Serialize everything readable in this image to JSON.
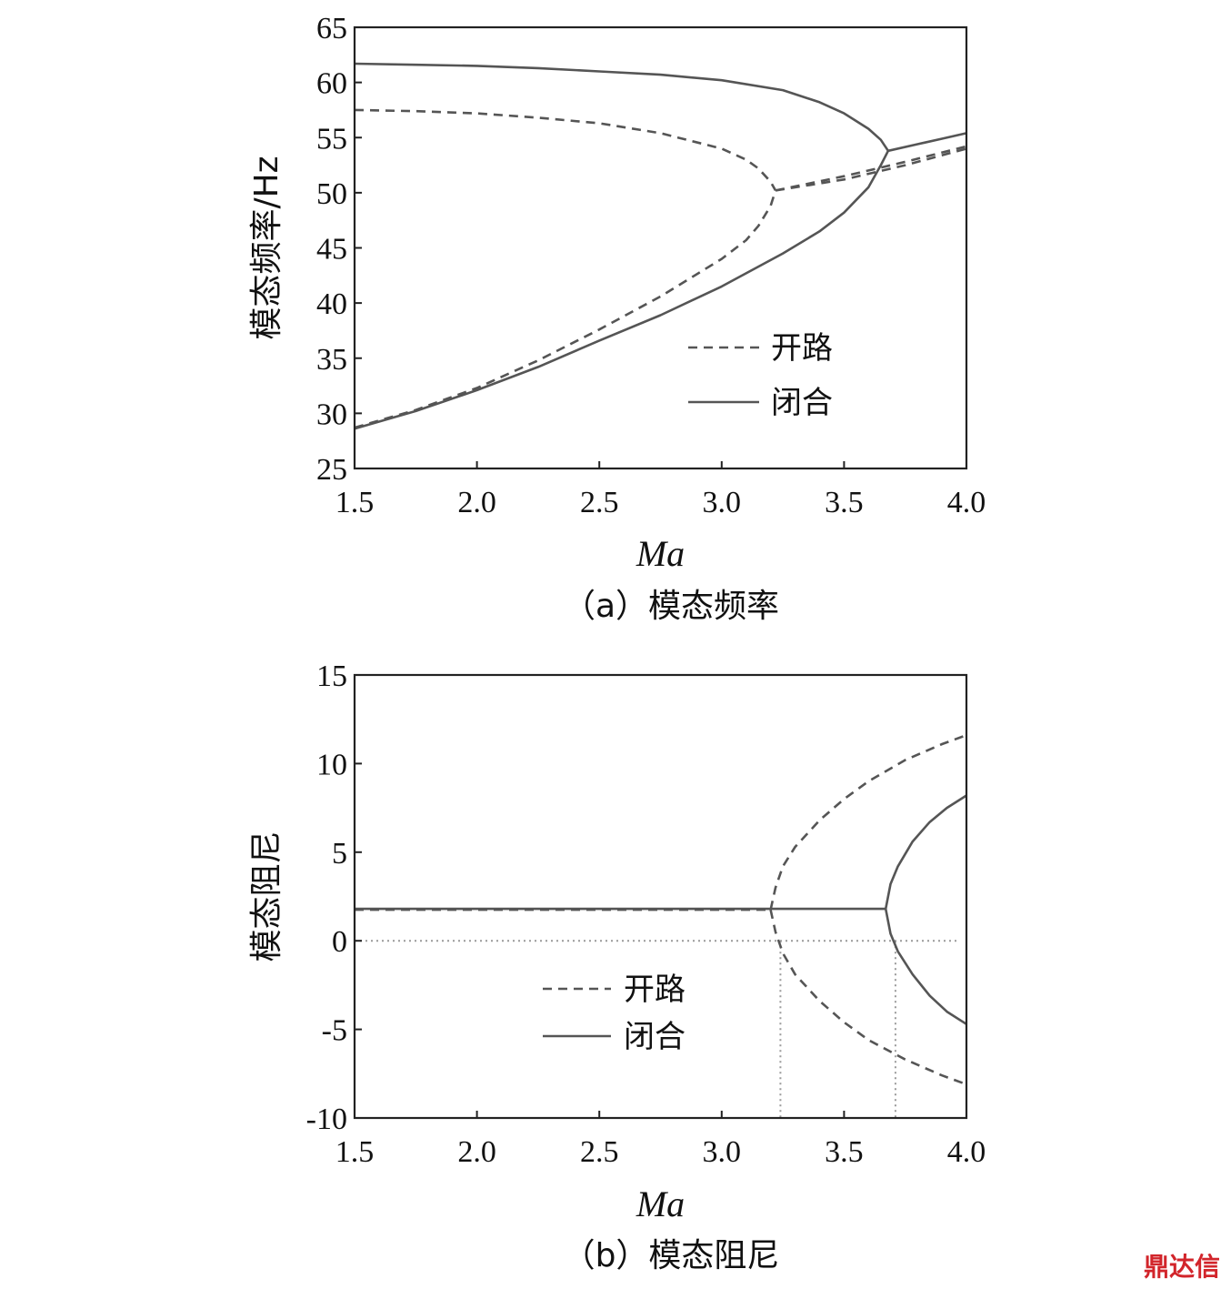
{
  "chart_data": [
    {
      "type": "line",
      "caption": "（a）模态频率",
      "xlabel": "Ma",
      "ylabel": "模态频率/Hz",
      "xlim": [
        1.5,
        4.0
      ],
      "ylim": [
        25,
        65
      ],
      "xticks": [
        "1.5",
        "2.0",
        "2.5",
        "3.0",
        "3.5",
        "4.0"
      ],
      "yticks": [
        "25",
        "30",
        "35",
        "40",
        "45",
        "50",
        "55",
        "60",
        "65"
      ],
      "legend": {
        "placement": "center-right",
        "entries": [
          "开路",
          "闭合"
        ]
      },
      "series": [
        {
          "name": "开路",
          "style": "dashed",
          "x": [
            1.5,
            1.75,
            2.0,
            2.25,
            2.5,
            2.75,
            3.0,
            3.1,
            3.15,
            3.2,
            3.22
          ],
          "y": [
            57.5,
            57.4,
            57.2,
            56.8,
            56.3,
            55.4,
            54.0,
            53.0,
            52.2,
            51.0,
            50.2
          ]
        },
        {
          "name": "开路",
          "style": "dashed",
          "x": [
            1.5,
            1.75,
            2.0,
            2.25,
            2.5,
            2.75,
            3.0,
            3.1,
            3.15,
            3.2,
            3.22
          ],
          "y": [
            28.7,
            30.3,
            32.3,
            34.8,
            37.6,
            40.6,
            44.0,
            45.7,
            47.0,
            48.8,
            50.2
          ]
        },
        {
          "name": "开路",
          "style": "dashed",
          "x": [
            3.22,
            3.5,
            3.75,
            4.0
          ],
          "y": [
            50.2,
            51.5,
            52.8,
            54.2
          ]
        },
        {
          "name": "开路",
          "style": "dashed",
          "x": [
            3.22,
            3.5,
            3.75,
            4.0
          ],
          "y": [
            50.2,
            51.2,
            52.5,
            54.0
          ]
        },
        {
          "name": "闭合",
          "style": "solid",
          "x": [
            1.5,
            1.75,
            2.0,
            2.25,
            2.5,
            2.75,
            3.0,
            3.25,
            3.4,
            3.5,
            3.6,
            3.65,
            3.68
          ],
          "y": [
            61.7,
            61.6,
            61.5,
            61.3,
            61.0,
            60.7,
            60.2,
            59.3,
            58.2,
            57.2,
            55.8,
            54.8,
            53.8
          ]
        },
        {
          "name": "闭合",
          "style": "solid",
          "x": [
            1.5,
            1.75,
            2.0,
            2.25,
            2.5,
            2.75,
            3.0,
            3.25,
            3.4,
            3.5,
            3.6,
            3.65,
            3.68
          ],
          "y": [
            28.6,
            30.2,
            32.1,
            34.2,
            36.6,
            38.9,
            41.5,
            44.5,
            46.5,
            48.2,
            50.5,
            52.5,
            53.8
          ]
        },
        {
          "name": "闭合",
          "style": "solid",
          "x": [
            3.68,
            3.8,
            3.9,
            4.0
          ],
          "y": [
            53.8,
            54.4,
            54.9,
            55.4
          ]
        }
      ]
    },
    {
      "type": "line",
      "caption": "（b）模态阻尼",
      "xlabel": "Ma",
      "ylabel": "模态阻尼",
      "xlim": [
        1.5,
        4.0
      ],
      "ylim": [
        -10,
        15
      ],
      "xticks": [
        "1.5",
        "2.0",
        "2.5",
        "3.0",
        "3.5",
        "4.0"
      ],
      "yticks": [
        "-10",
        "-5",
        "0",
        "5",
        "10",
        "15"
      ],
      "legend": {
        "placement": "bottom-center",
        "entries": [
          "开路",
          "闭合"
        ]
      },
      "reference_lines": {
        "y": 0,
        "x": [
          3.24,
          3.71
        ]
      },
      "series": [
        {
          "name": "开路",
          "style": "dashed",
          "x": [
            1.5,
            2.0,
            2.5,
            3.0,
            3.2
          ],
          "y": [
            1.75,
            1.75,
            1.75,
            1.75,
            1.75
          ]
        },
        {
          "name": "开路",
          "style": "dashed",
          "x": [
            3.2,
            3.22,
            3.25,
            3.3,
            3.4,
            3.5,
            3.6,
            3.75,
            3.9,
            4.0
          ],
          "y": [
            1.75,
            3.0,
            4.2,
            5.3,
            6.8,
            8.0,
            9.0,
            10.2,
            11.1,
            11.6
          ]
        },
        {
          "name": "开路",
          "style": "dashed",
          "x": [
            3.2,
            3.22,
            3.25,
            3.3,
            3.4,
            3.5,
            3.6,
            3.75,
            3.9,
            4.0
          ],
          "y": [
            1.75,
            0.5,
            -0.7,
            -1.9,
            -3.4,
            -4.6,
            -5.6,
            -6.7,
            -7.6,
            -8.1
          ]
        },
        {
          "name": "闭合",
          "style": "solid",
          "x": [
            1.5,
            2.0,
            2.5,
            3.0,
            3.5,
            3.67
          ],
          "y": [
            1.8,
            1.8,
            1.8,
            1.8,
            1.8,
            1.8
          ]
        },
        {
          "name": "闭合",
          "style": "solid",
          "x": [
            3.67,
            3.69,
            3.72,
            3.78,
            3.85,
            3.92,
            4.0
          ],
          "y": [
            1.8,
            3.2,
            4.2,
            5.6,
            6.7,
            7.5,
            8.2
          ]
        },
        {
          "name": "闭合",
          "style": "solid",
          "x": [
            3.67,
            3.69,
            3.72,
            3.78,
            3.85,
            3.92,
            4.0
          ],
          "y": [
            1.8,
            0.4,
            -0.6,
            -1.9,
            -3.1,
            -4.0,
            -4.7
          ]
        }
      ]
    }
  ],
  "watermark": "鼎达信"
}
